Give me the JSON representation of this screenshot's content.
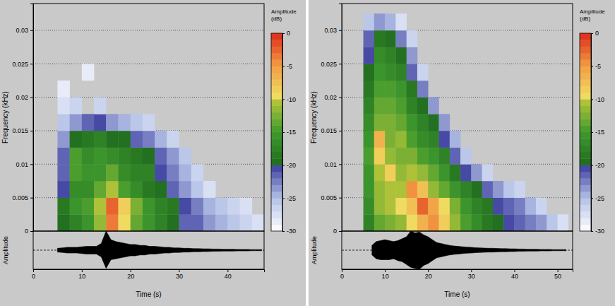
{
  "chart_data": [
    {
      "type": "heatmap",
      "xlabel": "Time (s)",
      "ylabel": "Frequency (kHz)",
      "xlim": [
        0,
        47.5
      ],
      "xticks": [
        0,
        10,
        20,
        30,
        40
      ],
      "ylim": [
        0,
        0.034
      ],
      "yticks": [
        0,
        0.005,
        0.01,
        0.015,
        0.02,
        0.025,
        0.03
      ],
      "grid": true,
      "x_edges": [
        0,
        2.5,
        5,
        7.5,
        10,
        12.5,
        15,
        17.5,
        20,
        22.5,
        25,
        27.5,
        30,
        32.5,
        35,
        37.5,
        40,
        42.5,
        45,
        47.5
      ],
      "y_edges": [
        0,
        0.0025,
        0.005,
        0.0075,
        0.01,
        0.0125,
        0.015,
        0.0175,
        0.02,
        0.0225,
        0.025,
        0.0275,
        0.03,
        0.0325
      ],
      "cells": [
        [
          null,
          null,
          -20,
          -18,
          -16,
          -12,
          -4,
          -10,
          -14,
          -16,
          -18,
          -20,
          -22,
          -22,
          -24,
          -25,
          -26,
          -27,
          -28
        ],
        [
          null,
          null,
          -19,
          -16,
          -15,
          -11,
          -3,
          -9,
          -13,
          -16,
          -18,
          -19,
          -21,
          -23,
          -25,
          -26,
          -27,
          -28,
          null
        ],
        [
          null,
          null,
          -21,
          -17,
          -17,
          -14,
          -11,
          -15,
          -17,
          -19,
          -20,
          -22,
          -24,
          -26,
          -28,
          null,
          null,
          null,
          null
        ],
        [
          null,
          null,
          -22,
          -15,
          -16,
          -16,
          -14,
          -17,
          -18,
          -18,
          -21,
          -23,
          -25,
          -27,
          null,
          null,
          null,
          null,
          null
        ],
        [
          null,
          null,
          -22,
          -15,
          -17,
          -16,
          -17,
          -18,
          -19,
          -20,
          -22,
          -24,
          -26,
          null,
          null,
          null,
          null,
          null,
          null
        ],
        [
          null,
          null,
          -24,
          -20,
          -19,
          -18,
          -20,
          -20,
          -22,
          -23,
          -25,
          -27,
          null,
          null,
          null,
          null,
          null,
          null,
          null
        ],
        [
          null,
          null,
          -26,
          -24,
          -22,
          -21,
          -24,
          -25,
          -26,
          -27,
          null,
          null,
          null,
          null,
          null,
          null,
          null,
          null,
          null
        ],
        [
          null,
          null,
          -28,
          -27,
          null,
          -27,
          null,
          null,
          null,
          null,
          null,
          null,
          null,
          null,
          null,
          null,
          null,
          null,
          null
        ],
        [
          null,
          null,
          -29,
          null,
          null,
          null,
          null,
          null,
          null,
          null,
          null,
          null,
          null,
          null,
          null,
          null,
          null,
          null,
          null
        ],
        [
          null,
          null,
          null,
          null,
          -29,
          null,
          null,
          null,
          null,
          null,
          null,
          null,
          null,
          null,
          null,
          null,
          null,
          null,
          null
        ],
        [
          null,
          null,
          null,
          null,
          null,
          null,
          null,
          null,
          null,
          null,
          null,
          null,
          null,
          null,
          null,
          null,
          null,
          null,
          null
        ],
        [
          null,
          null,
          null,
          null,
          null,
          null,
          null,
          null,
          null,
          null,
          null,
          null,
          null,
          null,
          null,
          null,
          null,
          null,
          null
        ],
        [
          null,
          null,
          null,
          null,
          null,
          null,
          null,
          null,
          null,
          null,
          null,
          null,
          null,
          null,
          null,
          null,
          null,
          null,
          null
        ]
      ],
      "colorbar": {
        "title": "Amplitude (dB)",
        "range": [
          -30,
          0
        ],
        "ticks": [
          0,
          -5,
          -10,
          -15,
          -20,
          -25,
          -30
        ]
      },
      "waveform": {
        "label": "Amplitude",
        "ylim": [
          -1,
          1
        ],
        "baseline": 0,
        "x": [
          0,
          1,
          2,
          3,
          4,
          5,
          6,
          7,
          8,
          9,
          10,
          11,
          12,
          13,
          14,
          15,
          16,
          17,
          18,
          19,
          20,
          21,
          22,
          23,
          24,
          25,
          26,
          27,
          28,
          29,
          30,
          31,
          32,
          33,
          34,
          35,
          36,
          37,
          38,
          39,
          40,
          41,
          42,
          43,
          44,
          45,
          46,
          47
        ],
        "upper": [
          null,
          null,
          null,
          null,
          null,
          0.1,
          0.12,
          0.15,
          0.15,
          0.15,
          0.18,
          0.2,
          0.2,
          0.2,
          0.35,
          1.0,
          0.55,
          0.45,
          0.4,
          0.35,
          0.3,
          0.3,
          0.25,
          0.25,
          0.2,
          0.2,
          0.18,
          0.15,
          0.15,
          0.12,
          0.12,
          0.1,
          0.1,
          0.08,
          0.08,
          0.07,
          0.07,
          0.06,
          0.06,
          0.05,
          0.05,
          0.05,
          0.04,
          0.04,
          0.04,
          0.03,
          0.03,
          0.03
        ],
        "lower": [
          null,
          null,
          null,
          null,
          null,
          -0.1,
          -0.12,
          -0.15,
          -0.15,
          -0.15,
          -0.18,
          -0.2,
          -0.2,
          -0.2,
          -0.35,
          -0.95,
          -0.5,
          -0.45,
          -0.4,
          -0.35,
          -0.3,
          -0.3,
          -0.25,
          -0.25,
          -0.2,
          -0.2,
          -0.18,
          -0.15,
          -0.15,
          -0.12,
          -0.12,
          -0.1,
          -0.1,
          -0.08,
          -0.08,
          -0.07,
          -0.07,
          -0.06,
          -0.06,
          -0.05,
          -0.05,
          -0.05,
          -0.04,
          -0.04,
          -0.04,
          -0.03,
          -0.03,
          -0.03
        ]
      }
    },
    {
      "type": "heatmap",
      "xlabel": "Time (s)",
      "ylabel": "Frequency (kHz)",
      "xlim": [
        0,
        53.5
      ],
      "xticks": [
        0,
        10,
        20,
        30,
        40,
        50
      ],
      "ylim": [
        0,
        0.034
      ],
      "yticks": [
        0,
        0.005,
        0.01,
        0.015,
        0.02,
        0.025,
        0.03
      ],
      "grid": true,
      "x_edges": [
        0,
        2.5,
        5,
        7.5,
        10,
        12.5,
        15,
        17.5,
        20,
        22.5,
        25,
        27.5,
        30,
        32.5,
        35,
        37.5,
        40,
        42.5,
        45,
        47.5,
        50,
        52.5
      ],
      "y_edges": [
        0,
        0.0025,
        0.005,
        0.0075,
        0.01,
        0.0125,
        0.015,
        0.0175,
        0.02,
        0.0225,
        0.025,
        0.0275,
        0.03,
        0.0325
      ],
      "cells": [
        [
          null,
          null,
          -18,
          -14,
          -13,
          -12,
          -10,
          -7,
          -5,
          -9,
          -12,
          -15,
          -17,
          -19,
          -20,
          -21,
          -22,
          -23,
          -24,
          -26,
          -28
        ],
        [
          null,
          null,
          -17,
          -12,
          -11,
          -10,
          -8,
          -3,
          -6,
          -10,
          -13,
          -16,
          -18,
          -19,
          -21,
          -22,
          -23,
          -25,
          -27,
          null,
          null
        ],
        [
          null,
          null,
          -16,
          -12,
          -11,
          -11,
          -5,
          -8,
          -12,
          -14,
          -16,
          -18,
          -20,
          -22,
          -24,
          -26,
          -27,
          null,
          null,
          null,
          null
        ],
        [
          null,
          null,
          -16,
          -11,
          -9,
          -12,
          -11,
          -12,
          -14,
          -16,
          -19,
          -21,
          -24,
          -27,
          null,
          null,
          null,
          null,
          null,
          null,
          null
        ],
        [
          null,
          null,
          -15,
          -9,
          -12,
          -13,
          -13,
          -15,
          -16,
          -18,
          -22,
          -26,
          null,
          null,
          null,
          null,
          null,
          null,
          null,
          null,
          null
        ],
        [
          null,
          null,
          -16,
          -7,
          -13,
          -12,
          -15,
          -17,
          -18,
          -21,
          -25,
          null,
          null,
          null,
          null,
          null,
          null,
          null,
          null,
          null,
          null
        ],
        [
          null,
          null,
          -17,
          -13,
          -13,
          -14,
          -16,
          -18,
          -20,
          -24,
          null,
          null,
          null,
          null,
          null,
          null,
          null,
          null,
          null,
          null,
          null
        ],
        [
          null,
          null,
          -18,
          -14,
          -14,
          -15,
          -18,
          -20,
          -24,
          null,
          null,
          null,
          null,
          null,
          null,
          null,
          null,
          null,
          null,
          null,
          null
        ],
        [
          null,
          null,
          -19,
          -15,
          -15,
          -16,
          -19,
          -23,
          null,
          null,
          null,
          null,
          null,
          null,
          null,
          null,
          null,
          null,
          null,
          null,
          null
        ],
        [
          null,
          null,
          -20,
          -16,
          -17,
          -18,
          -22,
          -27,
          null,
          null,
          null,
          null,
          null,
          null,
          null,
          null,
          null,
          null,
          null,
          null,
          null
        ],
        [
          null,
          null,
          -21,
          -17,
          -18,
          -20,
          -24,
          null,
          null,
          null,
          null,
          null,
          null,
          null,
          null,
          null,
          null,
          null,
          null,
          null,
          null
        ],
        [
          null,
          null,
          -22,
          -19,
          -20,
          -23,
          -27,
          null,
          null,
          null,
          null,
          null,
          null,
          null,
          null,
          null,
          null,
          null,
          null,
          null,
          null
        ],
        [
          null,
          null,
          -26,
          -24,
          -25,
          -28,
          null,
          null,
          null,
          null,
          null,
          null,
          null,
          null,
          null,
          null,
          null,
          null,
          null,
          null,
          null
        ]
      ],
      "colorbar": {
        "title": "Amplitude (dB)",
        "range": [
          -30,
          0
        ],
        "ticks": [
          0,
          -5,
          -10,
          -15,
          -20,
          -25,
          -30
        ]
      },
      "waveform": {
        "label": "Amplitude",
        "ylim": [
          -1,
          1
        ],
        "baseline": 0,
        "x": [
          0,
          1,
          2,
          3,
          4,
          5,
          6,
          7,
          8,
          9,
          10,
          11,
          12,
          13,
          14,
          15,
          16,
          17,
          18,
          19,
          20,
          21,
          22,
          23,
          24,
          25,
          26,
          27,
          28,
          29,
          30,
          31,
          32,
          33,
          34,
          35,
          36,
          37,
          38,
          39,
          40,
          41,
          42,
          43,
          44,
          45,
          46,
          47,
          48,
          49,
          50,
          51,
          52,
          53
        ],
        "upper": [
          null,
          null,
          null,
          null,
          null,
          null,
          null,
          0.25,
          0.45,
          0.5,
          0.55,
          0.5,
          0.45,
          0.5,
          0.6,
          0.7,
          1.0,
          0.9,
          0.95,
          0.8,
          0.7,
          0.55,
          0.4,
          0.35,
          0.3,
          0.25,
          0.22,
          0.2,
          0.18,
          0.16,
          0.15,
          0.13,
          0.12,
          0.11,
          0.1,
          0.1,
          0.09,
          0.08,
          0.08,
          0.07,
          0.07,
          0.06,
          0.06,
          0.05,
          0.05,
          0.05,
          0.04,
          0.04,
          0.04,
          0.03,
          0.03,
          0.03,
          0.03,
          null
        ],
        "lower": [
          null,
          null,
          null,
          null,
          null,
          null,
          null,
          -0.25,
          -0.45,
          -0.5,
          -0.5,
          -0.5,
          -0.45,
          -0.55,
          -0.6,
          -0.75,
          -0.9,
          -0.95,
          -1.0,
          -0.8,
          -0.7,
          -0.55,
          -0.4,
          -0.35,
          -0.3,
          -0.25,
          -0.22,
          -0.2,
          -0.18,
          -0.16,
          -0.15,
          -0.13,
          -0.12,
          -0.11,
          -0.1,
          -0.1,
          -0.09,
          -0.08,
          -0.08,
          -0.07,
          -0.07,
          -0.06,
          -0.06,
          -0.05,
          -0.05,
          -0.05,
          -0.04,
          -0.04,
          -0.04,
          -0.03,
          -0.03,
          -0.03,
          -0.03,
          null
        ]
      }
    }
  ]
}
